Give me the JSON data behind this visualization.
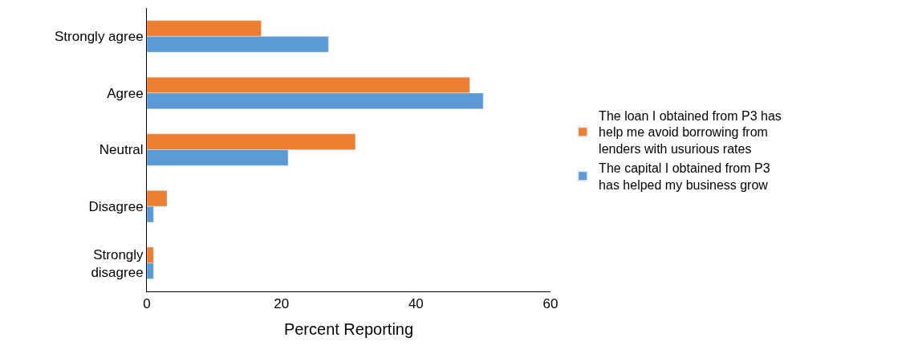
{
  "chart_data": {
    "type": "bar",
    "orientation": "horizontal",
    "xlabel": "Percent Reporting",
    "categories": [
      "Strongly agree",
      "Agree",
      "Neutral",
      "Disagree",
      "Strongly disagree"
    ],
    "series": [
      {
        "name": "The loan I obtained from P3 has help me avoid borrowing from lenders with usurious rates",
        "color": "#ed7d31",
        "values": [
          17,
          48,
          31,
          3,
          1
        ]
      },
      {
        "name": "The capital I obtained from P3 has helped my business grow",
        "color": "#5b9bd5",
        "values": [
          27,
          50,
          21,
          1,
          1
        ]
      }
    ],
    "xlim": [
      0,
      60
    ],
    "xticks": [
      0,
      20,
      40,
      60
    ],
    "legend": "right"
  }
}
